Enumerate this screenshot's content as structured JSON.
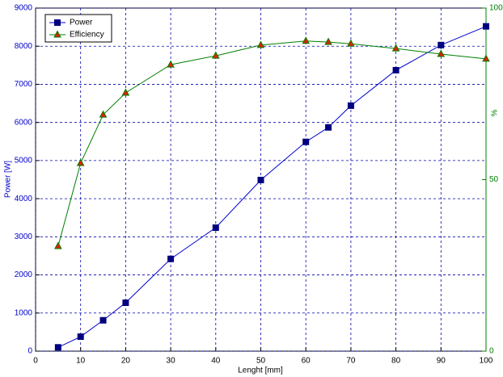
{
  "chart_data": {
    "type": "line",
    "xlabel": "Lenght [mm]",
    "ylabel": "Power [W]",
    "y2label": "%",
    "x": [
      5,
      10,
      15,
      20,
      30,
      40,
      50,
      60,
      65,
      70,
      80,
      90,
      100
    ],
    "series": [
      {
        "name": "Power",
        "color": "#0000cc",
        "marker": "square",
        "marker_color": "#000080",
        "values": [
          100,
          380,
          810,
          1270,
          2420,
          3240,
          4490,
          5490,
          5870,
          6440,
          7370,
          8030,
          8520
        ]
      },
      {
        "name": "Efficiency",
        "color": "#008000",
        "marker": "triangle",
        "marker_color": "#dd2200",
        "axis": "y2",
        "values": [
          30.6,
          54.8,
          68.9,
          75.3,
          83.5,
          86.1,
          89.2,
          90.4,
          90.1,
          89.6,
          88.2,
          86.6,
          85.2
        ]
      }
    ],
    "xlim": [
      0,
      100
    ],
    "xticks": [
      0,
      10,
      20,
      30,
      40,
      50,
      60,
      70,
      80,
      90,
      100
    ],
    "ylim": [
      0,
      9000
    ],
    "yticks": [
      0,
      1000,
      2000,
      3000,
      4000,
      5000,
      6000,
      7000,
      8000,
      9000
    ],
    "y2lim": [
      0,
      100
    ],
    "y2ticks": [
      0,
      50,
      100
    ],
    "y_axis_color": "#0000cc",
    "y2_axis_color": "#008000",
    "grid": true,
    "legend": "upper left"
  }
}
